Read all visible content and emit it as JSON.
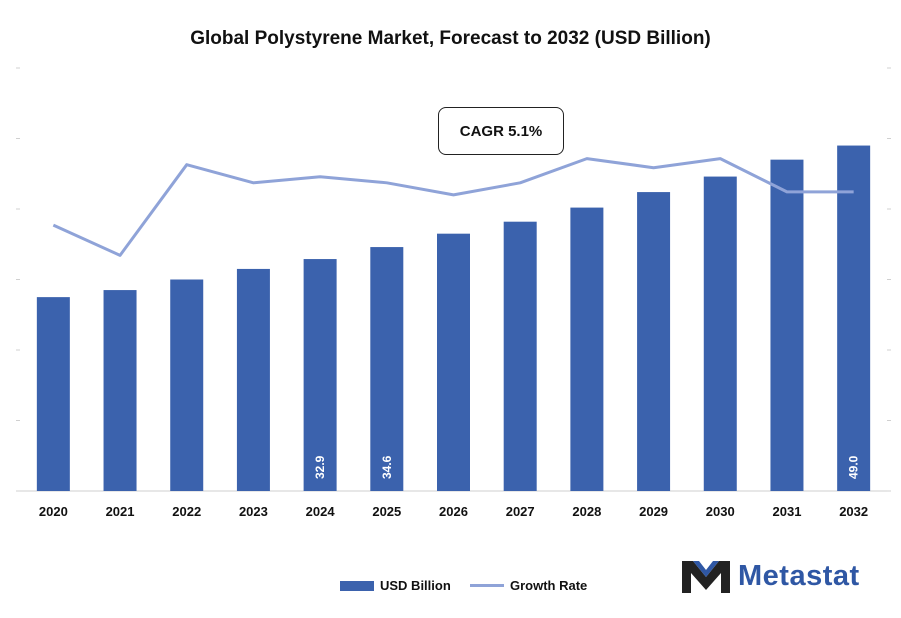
{
  "chart_data": {
    "type": "bar",
    "title": "Global Polystyrene Market, Forecast to 2032 (USD Billion)",
    "categories": [
      "2020",
      "2021",
      "2022",
      "2023",
      "2024",
      "2025",
      "2026",
      "2027",
      "2028",
      "2029",
      "2030",
      "2031",
      "2032"
    ],
    "series": [
      {
        "name": "USD Billion",
        "type": "bar",
        "color": "#3b62ad",
        "values": [
          27.5,
          28.5,
          30.0,
          31.5,
          32.9,
          34.6,
          36.5,
          38.2,
          40.2,
          42.4,
          44.6,
          47.0,
          49.0
        ],
        "labels": {
          "2024": "32.9",
          "2025": "34.6",
          "2032": "49.0"
        }
      },
      {
        "name": "Growth Rate",
        "type": "line",
        "color": "#8fa3d8",
        "values": [
          4.4,
          3.9,
          5.4,
          5.1,
          5.2,
          5.1,
          4.9,
          5.1,
          5.5,
          5.35,
          5.5,
          4.95,
          4.95
        ]
      }
    ],
    "ylim": [
      0,
      60
    ],
    "y2lim": [
      0,
      7
    ],
    "xlabel": "",
    "ylabel": "",
    "grid": false,
    "legend_position": "bottom-center",
    "annotation": "CAGR 5.1%"
  },
  "logo": {
    "text": "Metastat"
  }
}
